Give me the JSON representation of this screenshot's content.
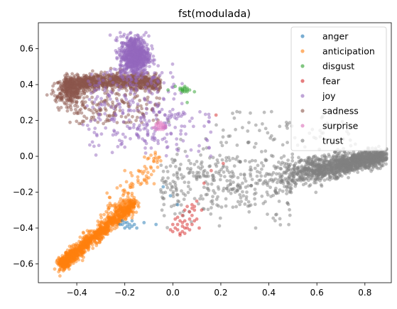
{
  "chart_data": {
    "type": "scatter",
    "title": "fst(modulada)",
    "xlabel": "",
    "ylabel": "",
    "xlim": [
      -0.56,
      0.91
    ],
    "ylim": [
      -0.705,
      0.745
    ],
    "xticks": [
      -0.4,
      -0.2,
      0.0,
      0.2,
      0.4,
      0.6,
      0.8
    ],
    "xtick_labels": [
      "−0.4",
      "−0.2",
      "0.0",
      "0.2",
      "0.4",
      "0.6",
      "0.8"
    ],
    "yticks": [
      -0.6,
      -0.4,
      -0.2,
      0.0,
      0.2,
      0.4,
      0.6
    ],
    "ytick_labels": [
      "−0.6",
      "−0.4",
      "−0.2",
      "0.0",
      "0.2",
      "0.4",
      "0.6"
    ],
    "grid": false,
    "legend_position": "top-right",
    "series": [
      {
        "name": "anger",
        "color": "#1f77b4",
        "points": [
          [
            -0.21,
            -0.38
          ],
          [
            -0.2,
            -0.37
          ],
          [
            -0.19,
            -0.39
          ],
          [
            -0.18,
            -0.38
          ],
          [
            -0.17,
            -0.36
          ],
          [
            -0.16,
            -0.38
          ],
          [
            -0.15,
            -0.4
          ],
          [
            -0.2,
            -0.4
          ],
          [
            -0.22,
            -0.38
          ],
          [
            -0.18,
            -0.4
          ],
          [
            -0.07,
            -0.38
          ],
          [
            -0.12,
            -0.37
          ],
          [
            -0.01,
            -0.22
          ],
          [
            0.02,
            -0.27
          ],
          [
            -0.04,
            -0.17
          ],
          [
            -0.19,
            -0.37
          ],
          [
            -0.17,
            -0.39
          ],
          [
            -0.21,
            -0.36
          ]
        ]
      },
      {
        "name": "anticipation",
        "color": "#ff7f0e",
        "points": []
      },
      {
        "name": "disgust",
        "color": "#2ca02c",
        "points": [
          [
            0.04,
            0.37
          ],
          [
            0.05,
            0.38
          ],
          [
            0.06,
            0.37
          ],
          [
            0.05,
            0.36
          ],
          [
            0.04,
            0.38
          ],
          [
            0.03,
            0.37
          ],
          [
            0.06,
            0.38
          ],
          [
            0.05,
            0.39
          ],
          [
            0.04,
            0.36
          ],
          [
            0.06,
            0.36
          ],
          [
            0.07,
            0.37
          ],
          [
            0.01,
            0.39
          ],
          [
            0.09,
            0.36
          ],
          [
            -0.02,
            0.37
          ],
          [
            0.06,
            0.3
          ],
          [
            0.04,
            0.37
          ],
          [
            0.05,
            0.37
          ],
          [
            0.03,
            0.38
          ]
        ]
      },
      {
        "name": "fear",
        "color": "#d62728",
        "points": [
          [
            0.03,
            -0.43
          ],
          [
            0.04,
            -0.42
          ],
          [
            0.02,
            -0.41
          ],
          [
            0.05,
            -0.4
          ],
          [
            0.06,
            -0.38
          ],
          [
            0.07,
            -0.35
          ],
          [
            0.08,
            -0.33
          ],
          [
            0.09,
            -0.3
          ],
          [
            0.09,
            -0.28
          ],
          [
            0.08,
            -0.27
          ],
          [
            0.06,
            -0.28
          ],
          [
            0.05,
            -0.3
          ],
          [
            0.04,
            -0.33
          ],
          [
            0.03,
            -0.36
          ],
          [
            0.02,
            -0.38
          ],
          [
            0.01,
            -0.4
          ],
          [
            0.0,
            -0.42
          ],
          [
            -0.01,
            -0.41
          ],
          [
            0.0,
            -0.38
          ],
          [
            0.01,
            -0.35
          ],
          [
            0.1,
            -0.35
          ],
          [
            0.11,
            -0.4
          ],
          [
            0.12,
            -0.3
          ],
          [
            0.1,
            -0.25
          ],
          [
            0.05,
            -0.36
          ],
          [
            0.06,
            -0.4
          ],
          [
            0.07,
            -0.41
          ],
          [
            0.08,
            -0.38
          ],
          [
            0.09,
            -0.36
          ],
          [
            0.13,
            -0.15
          ],
          [
            0.16,
            -0.08
          ],
          [
            0.21,
            -0.04
          ],
          [
            0.18,
            0.23
          ],
          [
            0.03,
            -0.44
          ],
          [
            0.05,
            -0.43
          ],
          [
            0.04,
            -0.39
          ],
          [
            0.07,
            -0.31
          ],
          [
            0.08,
            -0.29
          ],
          [
            0.02,
            -0.34
          ],
          [
            0.04,
            -0.37
          ]
        ]
      },
      {
        "name": "joy",
        "color": "#9467bd",
        "points": []
      },
      {
        "name": "sadness",
        "color": "#8c564b",
        "points": []
      },
      {
        "name": "surprise",
        "color": "#e377c2",
        "points": [
          [
            -0.07,
            0.17
          ],
          [
            -0.06,
            0.18
          ],
          [
            -0.05,
            0.16
          ],
          [
            -0.04,
            0.17
          ],
          [
            -0.06,
            0.16
          ],
          [
            -0.05,
            0.18
          ],
          [
            -0.07,
            0.15
          ],
          [
            -0.04,
            0.15
          ],
          [
            -0.06,
            0.17
          ],
          [
            -0.05,
            0.17
          ],
          [
            -0.08,
            0.16
          ],
          [
            -0.03,
            0.16
          ],
          [
            -0.05,
            0.15
          ],
          [
            -0.06,
            0.15
          ],
          [
            -0.04,
            0.18
          ],
          [
            -0.05,
            0.19
          ],
          [
            -0.07,
            0.18
          ],
          [
            -0.06,
            0.19
          ],
          [
            -0.03,
            0.17
          ],
          [
            -0.04,
            0.16
          ]
        ]
      },
      {
        "name": "trust",
        "color": "#7f7f7f",
        "points": []
      }
    ],
    "legend": [
      "anger",
      "anticipation",
      "disgust",
      "fear",
      "joy",
      "sadness",
      "surprise",
      "trust"
    ]
  }
}
